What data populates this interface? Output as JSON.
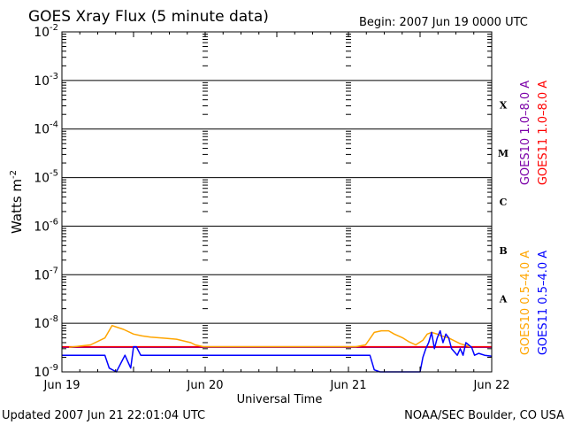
{
  "header": {
    "title": "GOES Xray Flux (5 minute data)",
    "begin": "Begin:  2007 Jun 19 0000 UTC"
  },
  "footer": {
    "updated": "Updated 2007 Jun 21 22:01:04 UTC",
    "source": "NOAA/SEC Boulder, CO USA"
  },
  "chart_data": {
    "type": "line",
    "xlabel": "Universal Time",
    "ylabel": "Watts m",
    "ylabel_sup": "-2",
    "y_scale": "log",
    "ylim": [
      1e-09,
      0.01
    ],
    "xlim": [
      "2007-06-19T00:00",
      "2007-06-22T00:00"
    ],
    "x_ticks": [
      "Jun 19",
      "Jun 20",
      "Jun 21",
      "Jun 22"
    ],
    "y_ticks": [
      {
        "base": "10",
        "exp": "-2"
      },
      {
        "base": "10",
        "exp": "-3"
      },
      {
        "base": "10",
        "exp": "-4"
      },
      {
        "base": "10",
        "exp": "-5"
      },
      {
        "base": "10",
        "exp": "-6"
      },
      {
        "base": "10",
        "exp": "-7"
      },
      {
        "base": "10",
        "exp": "-8"
      },
      {
        "base": "10",
        "exp": "-9"
      }
    ],
    "flare_classes": [
      {
        "label": "X",
        "flux": 0.0001
      },
      {
        "label": "M",
        "flux": 1e-05
      },
      {
        "label": "C",
        "flux": 1e-06
      },
      {
        "label": "B",
        "flux": 1e-07
      },
      {
        "label": "A",
        "flux": 1e-08
      }
    ],
    "grid": true,
    "legend_placement": "right",
    "series": [
      {
        "name": "GOES10 1.0–8.0 A",
        "color": "#7b00a8",
        "x": [
          0,
          0.05,
          0.25,
          0.6,
          1.0,
          1.5,
          2.0,
          2.2,
          2.5,
          3.0
        ],
        "y": [
          3.2e-09,
          3.2e-09,
          3.2e-09,
          3.2e-09,
          3.2e-09,
          3.2e-09,
          3.2e-09,
          3.2e-09,
          3.2e-09,
          3.2e-09
        ]
      },
      {
        "name": "GOES11 1.0–8.0 A",
        "color": "#ff0000",
        "x": [
          0,
          0.3,
          0.6,
          1.0,
          1.5,
          2.0,
          2.5,
          2.8,
          3.0
        ],
        "y": [
          3.3e-09,
          3.3e-09,
          3.3e-09,
          3.3e-09,
          3.3e-09,
          3.3e-09,
          3.3e-09,
          3.3e-09,
          3.3e-09
        ]
      },
      {
        "name": "GOES10 0.5–4.0 A",
        "color": "#ffa500",
        "x": [
          0.05,
          0.2,
          0.3,
          0.35,
          0.43,
          0.5,
          0.56,
          0.62,
          0.7,
          0.8,
          0.9,
          0.93,
          0.99,
          2.05,
          2.12,
          2.18,
          2.23,
          2.28,
          2.32,
          2.38,
          2.42,
          2.47,
          2.52,
          2.55,
          2.58,
          2.62,
          2.65,
          2.7,
          2.73,
          2.78,
          2.85
        ],
        "y": [
          3.2e-09,
          3.6e-09,
          5e-09,
          9e-09,
          7.5e-09,
          6e-09,
          5.5e-09,
          5.2e-09,
          5e-09,
          4.7e-09,
          4e-09,
          3.6e-09,
          3.3e-09,
          3.3e-09,
          3.6e-09,
          6.5e-09,
          7e-09,
          7e-09,
          6e-09,
          5e-09,
          4.2e-09,
          3.6e-09,
          4.5e-09,
          6e-09,
          6.5e-09,
          6e-09,
          5.5e-09,
          5e-09,
          4.5e-09,
          3.8e-09,
          3.3e-09
        ]
      },
      {
        "name": "GOES11 0.5–4.0 A",
        "color": "#0000ff",
        "x": [
          0,
          0.3,
          0.33,
          0.38,
          0.44,
          0.48,
          0.5,
          0.52,
          0.55,
          1.0,
          1.5,
          2.0,
          2.15,
          2.18,
          2.22,
          2.25,
          2.3,
          2.35,
          2.4,
          2.45,
          2.5,
          2.52,
          2.54,
          2.56,
          2.58,
          2.6,
          2.62,
          2.64,
          2.66,
          2.68,
          2.7,
          2.72,
          2.76,
          2.78,
          2.8,
          2.82,
          2.86,
          2.88,
          2.91,
          2.95,
          3.0
        ],
        "y": [
          2.2e-09,
          2.2e-09,
          1.2e-09,
          8.5e-10,
          2.2e-09,
          1.2e-09,
          3.3e-09,
          3.3e-09,
          2.2e-09,
          2.2e-09,
          2.2e-09,
          2.2e-09,
          2.2e-09,
          1.1e-09,
          7e-10,
          6e-10,
          5.5e-10,
          5.5e-10,
          6e-10,
          5e-10,
          9e-10,
          2e-09,
          3e-09,
          4e-09,
          6.5e-09,
          3e-09,
          5e-09,
          7e-09,
          4e-09,
          6e-09,
          5e-09,
          3e-09,
          2.2e-09,
          3e-09,
          2.2e-09,
          4e-09,
          3.2e-09,
          2.2e-09,
          2.4e-09,
          2.2e-09,
          2.1e-09
        ]
      }
    ]
  }
}
